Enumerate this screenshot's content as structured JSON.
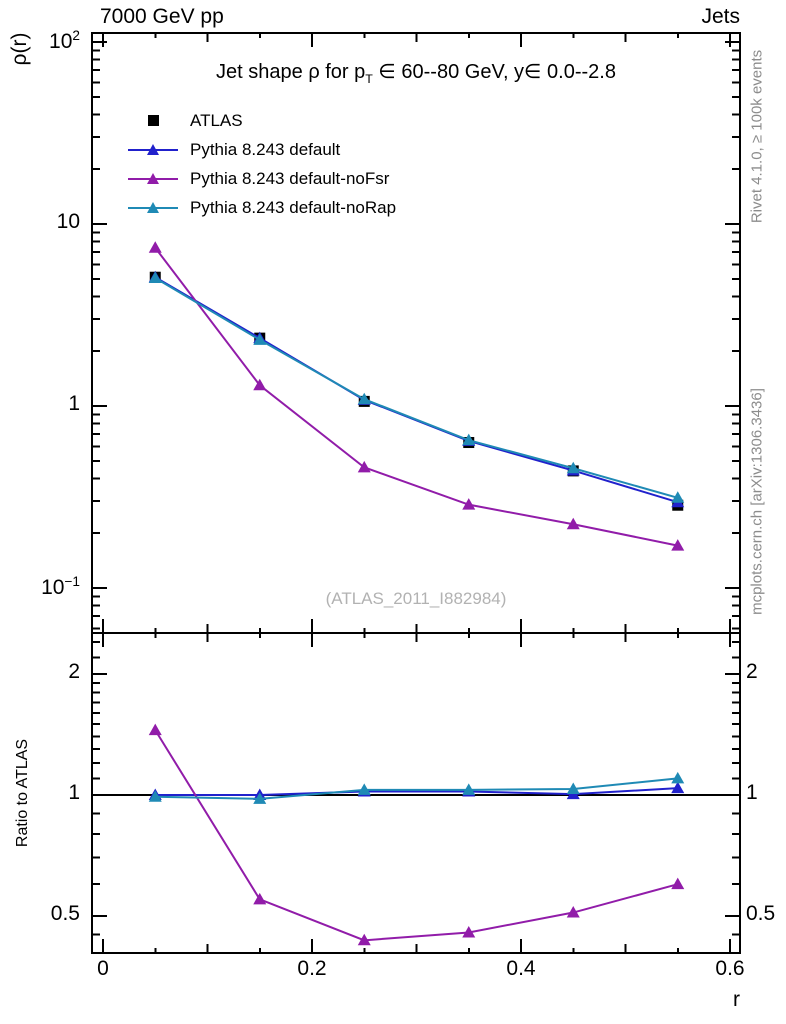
{
  "header": {
    "left": "7000 GeV pp",
    "right": "Jets"
  },
  "title": {
    "pre": "Jet shape ρ for p",
    "sub": "T",
    "post": " ∈ 60--80 GeV, y∈ 0.0--2.8"
  },
  "watermark": "(ATLAS_2011_I882984)",
  "side_notes": {
    "top": "Rivet 4.1.0, ≥ 100k events",
    "bottom": "mcplots.cern.ch [arXiv:1306.3436]"
  },
  "colors": {
    "atlas": "#000000",
    "default": "#2121cc",
    "noFsr": "#911ca9",
    "noRap": "#1f8ab5",
    "frame": "#000000",
    "gray_text": "#8c8c8c",
    "watermark_gray": "#b2b2b2"
  },
  "legend": [
    {
      "label": "ATLAS",
      "marker": "square",
      "color": "#000000",
      "line": false
    },
    {
      "label": "Pythia 8.243 default",
      "marker": "triangle",
      "color": "#2121cc",
      "line": true
    },
    {
      "label": "Pythia 8.243 default-noFsr",
      "marker": "triangle",
      "color": "#911ca9",
      "line": true
    },
    {
      "label": "Pythia 8.243 default-noRap",
      "marker": "triangle",
      "color": "#1f8ab5",
      "line": true
    }
  ],
  "chart_data": {
    "type": "line",
    "x": [
      0.05,
      0.15,
      0.25,
      0.35,
      0.45,
      0.55
    ],
    "xlabel": "r",
    "xlim": [
      -0.0105,
      0.6096
    ],
    "x_ticks": [
      {
        "label": "0",
        "v": 0
      },
      {
        "label": "0.2",
        "v": 0.2
      },
      {
        "label": "0.4",
        "v": 0.4
      },
      {
        "label": "0.6",
        "v": 0.6
      }
    ],
    "main_panel": {
      "ylabel": "ρ(r)",
      "yscale": "log",
      "ylim": [
        0.0566,
        112
      ],
      "series": [
        {
          "name": "ATLAS",
          "marker": "square",
          "color": "#000000",
          "line": false,
          "values": [
            5.1,
            2.36,
            1.06,
            0.63,
            0.44,
            0.285
          ]
        },
        {
          "name": "Pythia 8.243 default",
          "marker": "triangle",
          "color": "#2121cc",
          "line": true,
          "values": [
            5.1,
            2.36,
            1.08,
            0.643,
            0.442,
            0.296
          ]
        },
        {
          "name": "Pythia 8.243 default-noFsr",
          "marker": "triangle",
          "color": "#911ca9",
          "line": true,
          "values": [
            7.4,
            1.3,
            0.46,
            0.287,
            0.224,
            0.171
          ]
        },
        {
          "name": "Pythia 8.243 default-noRap",
          "marker": "triangle",
          "color": "#1f8ab5",
          "line": true,
          "values": [
            5.05,
            2.31,
            1.09,
            0.649,
            0.455,
            0.313
          ]
        }
      ],
      "y_ticks": [
        {
          "label": "10",
          "sup": "2",
          "v": 100
        },
        {
          "label": "10",
          "sup": "",
          "v": 10
        },
        {
          "label": "1",
          "sup": "",
          "v": 1
        },
        {
          "label": "10",
          "sup": "−1",
          "v": 0.1
        }
      ]
    },
    "ratio_panel": {
      "ylabel": "Ratio to ATLAS",
      "yscale": "log",
      "ylim": [
        0.404,
        2.53
      ],
      "reference": 1,
      "series": [
        {
          "name": "Pythia 8.243 default",
          "marker": "triangle",
          "color": "#2121cc",
          "line": true,
          "values": [
            1.0,
            1.0,
            1.02,
            1.02,
            1.005,
            1.04
          ]
        },
        {
          "name": "Pythia 8.243 default-noFsr",
          "marker": "triangle",
          "color": "#911ca9",
          "line": true,
          "values": [
            1.45,
            0.55,
            0.435,
            0.455,
            0.51,
            0.6
          ]
        },
        {
          "name": "Pythia 8.243 default-noRap",
          "marker": "triangle",
          "color": "#1f8ab5",
          "line": true,
          "values": [
            0.99,
            0.978,
            1.03,
            1.03,
            1.035,
            1.1
          ]
        }
      ],
      "y_ticks": [
        {
          "label": "2",
          "v": 2
        },
        {
          "label": "1",
          "v": 1
        },
        {
          "label": "0.5",
          "v": 0.5
        }
      ]
    }
  }
}
